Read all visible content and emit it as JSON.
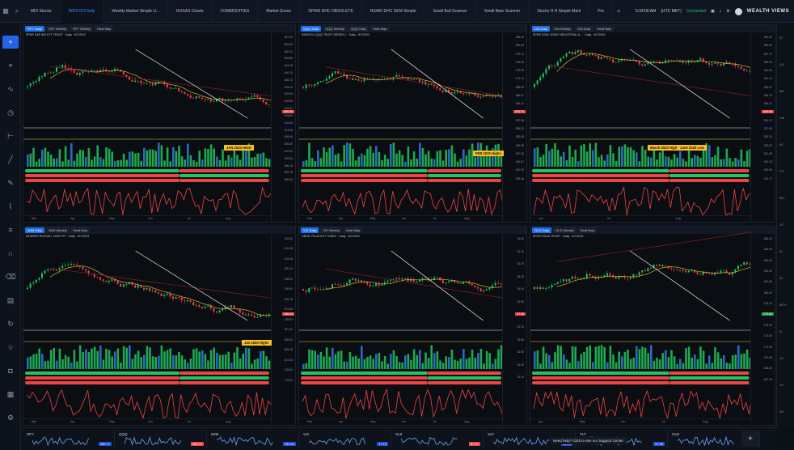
{
  "topbar": {
    "tabs": [
      "MDI Stocks",
      "IND3:OH Daily",
      "Weekly Market Simple U...",
      "RUSAS Charts",
      "COMMODITIES",
      "Market Scene",
      "SP400 DHC OBSOLETE",
      "NS400 DHC DEM Simple",
      "Small Bull Scanner",
      "Small Bear Scanner",
      "Stocks H H Simple Mark",
      "Per"
    ],
    "active_tab": 1,
    "right": {
      "time": "5:34:00 AM",
      "account": "(UTC MKT)",
      "status": "Connected",
      "logo": "WEALTH VIEWS"
    }
  },
  "leftbar": {
    "tools": [
      "plus-icon",
      "crosshair-icon",
      "chart-icon",
      "clock-icon",
      "ruler-icon",
      "line-icon",
      "pen-icon",
      "brush-icon",
      "layers-icon",
      "magnet-icon",
      "trash-icon",
      "calendar-icon",
      "sync-icon",
      "star-icon",
      "camera-icon",
      "grid-icon",
      "settings-icon"
    ]
  },
  "rightbar": {
    "labels": [
      "ID",
      "GU",
      "5M",
      "SM",
      "60",
      "FR",
      "MO",
      "1S",
      "ID",
      "IN",
      "MTH",
      "N",
      "1S",
      "1S",
      "9B"
    ]
  },
  "colors": {
    "bull": "#22c55e",
    "bear": "#ef4444",
    "accent": "#1f6feb",
    "annotation": "#fbbf24",
    "ma": "#d4b43a",
    "longma": "#8b1d2b"
  },
  "panels": [
    {
      "chips": [
        "SPY  Daily",
        "SPY  Weekly",
        "SPY  Weekly",
        "Heat Map"
      ],
      "subtitle": "SPDR S&P 500 ETF TRUST · Daily · 8/7/2023",
      "annotation": "JAN 2023 HIGH",
      "axis": [
        "457.00",
        "453.60",
        "450.24",
        "446.86",
        "443.48",
        "440.10",
        "436.72",
        "433.34",
        "429.96",
        "426.58",
        "423.20",
        "419.82",
        "416.44",
        "413.06",
        "409.68",
        "406.30",
        "402.92",
        "399.54",
        "396.16",
        "392.78",
        "389.40"
      ],
      "price_tag": "450.64",
      "xaxis": [
        "Mar",
        "Apr",
        "May",
        "Jun",
        "Jul",
        "Aug"
      ]
    },
    {
      "chips": [
        "QQQ  Daily",
        "QQQ  Weekly",
        "QQQ  Daily",
        "Heat Map"
      ],
      "subtitle": "INVESCO QQQ TRUST SERIES 1 · Daily · 8/7/2023",
      "annotation": "FEB 2020 Highs",
      "axis": [
        "384.02",
        "381.84",
        "379.21",
        "376.53",
        "373.90",
        "371.21",
        "368.63",
        "365.97",
        "363.31",
        "360.64",
        "357.98",
        "355.32",
        "352.65",
        "349.99",
        "347.33",
        "344.67",
        "342.00",
        "339.34"
      ],
      "price_tag": "370.71",
      "xaxis": [
        "Mar",
        "Apr",
        "May",
        "Jun",
        "Jul",
        "Aug"
      ]
    },
    {
      "chips": [
        "DIA  Daily",
        "DIA  Weekly",
        "DIA  Daily",
        "Heat Map"
      ],
      "subtitle": "SPDR DOW JONES INDUSTRIAL A... · Daily · 8/7/2023",
      "annotation": "March 2020 High · June 2020 Low",
      "axis": [
        "352.22",
        "350.00",
        "347.73",
        "345.54",
        "343.36",
        "341.12",
        "338.97",
        "336.78",
        "334.57",
        "332.36",
        "330.17",
        "327.98",
        "325.78",
        "323.57",
        "321.36",
        "319.15",
        "316.96",
        "314.77"
      ],
      "price_tag": "344.95",
      "xaxis": [
        "Jun",
        "Jul",
        "Aug"
      ]
    },
    {
      "chips": [
        "IWM  Daily",
        "IWM  Weekly",
        "Heat Map"
      ],
      "subtitle": "ISHARES RUSSELL 2000 ETF · Daily · 8/7/2023",
      "annotation": "Jan 2023 Highs",
      "axis": [
        "206.50",
        "204.38",
        "202.26",
        "200.14",
        "198.02",
        "195.90",
        "193.78",
        "191.66",
        "189.54",
        "187.42",
        "185.30",
        "183.18",
        "181.06",
        "178.94",
        "176.82"
      ],
      "price_tag": "196.23",
      "xaxis": [
        "Mar",
        "Apr",
        "May",
        "Jun",
        "Jul",
        "Aug"
      ]
    },
    {
      "chips": [
        "VIX  Daily",
        "VIX  Weekly",
        "Heat Map"
      ],
      "subtitle": "CBOE VOLATILITY INDEX · Daily · 8/7/2023",
      "annotation": "",
      "axis": [
        "34.00",
        "32.10",
        "30.20",
        "28.30",
        "26.40",
        "24.50",
        "22.60",
        "20.70",
        "18.80",
        "16.90",
        "15.00",
        "13.10"
      ],
      "price_tag": "17.10",
      "xaxis": [
        "Mar",
        "Apr",
        "May",
        "Jun",
        "Jul",
        "Aug"
      ]
    },
    {
      "chips": [
        "GLD  Daily",
        "GLD  Weekly",
        "Heat Map"
      ],
      "subtitle": "SPDR GOLD TRUST · Daily · 8/7/2023",
      "annotation": "",
      "axis": [
        "188.00",
        "186.40",
        "184.80",
        "183.20",
        "181.60",
        "180.00",
        "178.40",
        "176.80",
        "175.20",
        "173.60",
        "172.00",
        "170.40",
        "168.80",
        "167.20"
      ],
      "price_tag": "179.60",
      "xaxis": [
        "Apr",
        "May",
        "Jun",
        "Jul",
        "Aug"
      ]
    }
  ],
  "tickers": [
    {
      "sym": "SPY",
      "val": "450.71"
    },
    {
      "sym": "QQQ",
      "val": "368.74"
    },
    {
      "sym": "IWM",
      "val": "193.94"
    },
    {
      "sym": "VIX",
      "val": "17.10"
    },
    {
      "sym": "XLE",
      "val": "87.31"
    },
    {
      "sym": "XLF",
      "val": "35.94"
    },
    {
      "sym": "TLT",
      "val": "97.90"
    },
    {
      "sym": "GLD",
      "val": "179.60"
    }
  ],
  "help": "Need help? Click to see our Support Center"
}
